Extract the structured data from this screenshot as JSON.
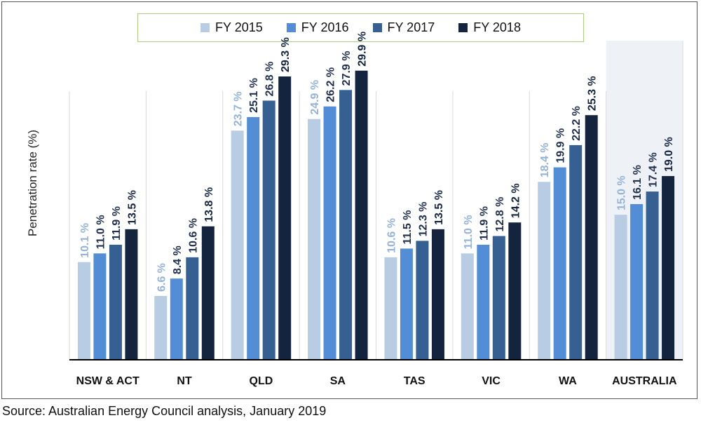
{
  "source_note": "Source: Australian Energy Council analysis, January 2019",
  "chart_data": {
    "type": "bar",
    "title": "",
    "xlabel": "",
    "ylabel": "Penetration rate (%)",
    "ylim": [
      0,
      33
    ],
    "grid": false,
    "legend_position": "top",
    "highlighted_category": "AUSTRALIA",
    "categories": [
      "NSW & ACT",
      "NT",
      "QLD",
      "SA",
      "TAS",
      "VIC",
      "WA",
      "AUSTRALIA"
    ],
    "series": [
      {
        "name": "FY 2015",
        "color": "#b8cce4",
        "label_color": "#95b3d7",
        "values": [
          10.1,
          6.6,
          23.7,
          24.9,
          10.6,
          11.0,
          18.4,
          15.0
        ],
        "labels": [
          "10.1 %",
          "6.6 %",
          "23.7 %",
          "24.9 %",
          "10.6 %",
          "11.0 %",
          "18.4 %",
          "15.0 %"
        ]
      },
      {
        "name": "FY 2016",
        "color": "#538dd5",
        "label_color": "#1f2f4d",
        "values": [
          11.0,
          8.4,
          25.1,
          26.2,
          11.5,
          11.9,
          19.9,
          16.1
        ],
        "labels": [
          "11.0 %",
          "8.4 %",
          "25.1 %",
          "26.2 %",
          "11.5 %",
          "11.9 %",
          "19.9 %",
          "16.1 %"
        ]
      },
      {
        "name": "FY 2017",
        "color": "#366092",
        "label_color": "#1f2f4d",
        "values": [
          11.9,
          10.6,
          26.8,
          27.9,
          12.3,
          12.8,
          22.2,
          17.4
        ],
        "labels": [
          "11.9 %",
          "10.6 %",
          "26.8 %",
          "27.9 %",
          "12.3 %",
          "12.8 %",
          "22.2 %",
          "17.4 %"
        ]
      },
      {
        "name": "FY 2018",
        "color": "#14243f",
        "label_color": "#14243f",
        "values": [
          13.5,
          13.8,
          29.3,
          29.9,
          13.5,
          14.2,
          25.3,
          19.0
        ],
        "labels": [
          "13.5 %",
          "13.8 %",
          "29.3 %",
          "29.9 %",
          "13.5 %",
          "14.2 %",
          "25.3 %",
          "19.0 %"
        ]
      }
    ]
  }
}
